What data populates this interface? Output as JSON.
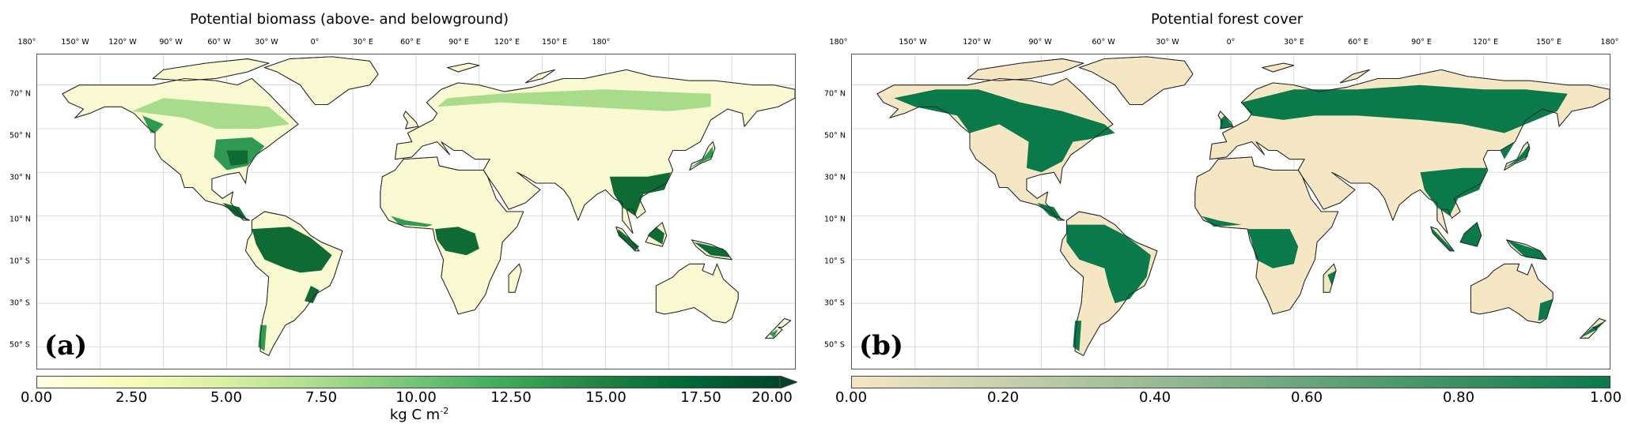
{
  "panel_a": {
    "title": "Potential biomass (above- and belowground)",
    "letter": "(a)",
    "colorbar": {
      "ticks": [
        "0.00",
        "2.50",
        "5.00",
        "7.50",
        "10.00",
        "12.50",
        "15.00",
        "17.50",
        "20.00"
      ],
      "unit_base": "kg C m",
      "unit_exp": "-2",
      "colors": [
        "#ffffe5",
        "#f7fcb9",
        "#d9f0a3",
        "#addd8e",
        "#78c679",
        "#41ab5d",
        "#238443",
        "#006837",
        "#004529"
      ],
      "extend": "max"
    }
  },
  "panel_b": {
    "title": "Potential forest cover",
    "letter": "(b)",
    "colorbar": {
      "ticks": [
        "0.00",
        "0.20",
        "0.40",
        "0.60",
        "0.80",
        "1.00"
      ],
      "colors": [
        "#f5e6c4",
        "#0b7a4a"
      ]
    }
  },
  "lon_labels": [
    "180°",
    "150° W",
    "120° W",
    "90° W",
    "60° W",
    "30° W",
    "0°",
    "30° E",
    "60° E",
    "90° E",
    "120° E",
    "150° E",
    "180°"
  ],
  "lat_labels": [
    "70° N",
    "50° N",
    "30° N",
    "10° N",
    "10° S",
    "30° S",
    "50° S"
  ],
  "colors": {
    "ocean": "#ffffff",
    "grid": "#d0d0d0",
    "coast": "#222222",
    "a_low": "#fafad2",
    "a_mid": "#a8dc8a",
    "a_high": "#2e9a52",
    "a_dense": "#0f6b34",
    "b_open": "#f5e6c4",
    "b_forest": "#0b7a4a"
  }
}
